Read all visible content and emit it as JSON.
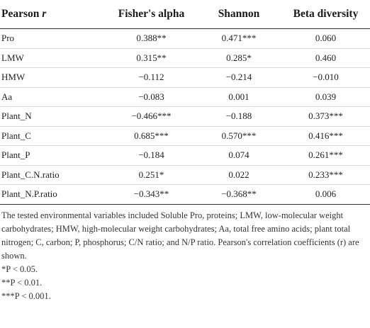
{
  "table": {
    "header": {
      "col0_italic": "Pearson r",
      "col1": "Fisher's alpha",
      "col2": "Shannon",
      "col3": "Beta diversity"
    },
    "rows": [
      {
        "variable": "Pro",
        "fisher": "0.388**",
        "shannon": "0.471***",
        "beta": "0.060"
      },
      {
        "variable": "LMW",
        "fisher": "0.315**",
        "shannon": "0.285*",
        "beta": "0.460"
      },
      {
        "variable": "HMW",
        "fisher": "−0.112",
        "shannon": "−0.214",
        "beta": "−0.010"
      },
      {
        "variable": "Aa",
        "fisher": "−0.083",
        "shannon": "0.001",
        "beta": "0.039"
      },
      {
        "variable": "Plant_N",
        "fisher": "−0.466***",
        "shannon": "−0.188",
        "beta": "0.373***"
      },
      {
        "variable": "Plant_C",
        "fisher": "0.685***",
        "shannon": "0.570***",
        "beta": "0.416***"
      },
      {
        "variable": "Plant_P",
        "fisher": "−0.184",
        "shannon": "0.074",
        "beta": "0.261***"
      },
      {
        "variable": "Plant_C.N.ratio",
        "fisher": "0.251*",
        "shannon": "0.022",
        "beta": "0.233***"
      },
      {
        "variable": "Plant_N.P.ratio",
        "fisher": "−0.343**",
        "shannon": "−0.368**",
        "beta": "0.006"
      }
    ]
  },
  "footnotes": {
    "description": "The tested environmental variables included Soluble Pro, proteins; LMW, low-molecular weight carbohydrates; HMW, high-molecular weight carbohydrates; Aa, total free amino acids; plant total nitrogen; C, carbon; P, phosphorus; C/N ratio; and N/P ratio. Pearson's correlation coefficients (r) are shown.",
    "sig1": "*P < 0.05.",
    "sig2": "**P < 0.01.",
    "sig3": "***P < 0.001."
  }
}
